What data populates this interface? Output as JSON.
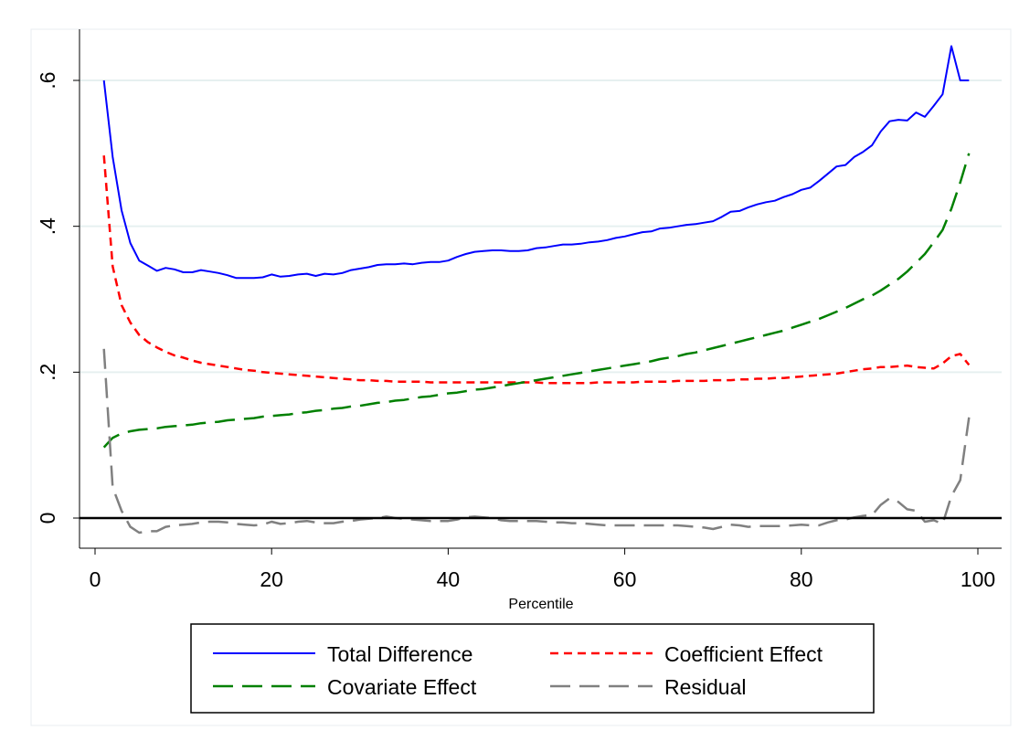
{
  "chart_data": {
    "type": "line",
    "title": "",
    "xlabel": "Percentile",
    "ylabel": "",
    "xlim": [
      0,
      100
    ],
    "ylim": [
      -0.045,
      0.67
    ],
    "x_ticks": [
      0,
      20,
      40,
      60,
      80,
      100
    ],
    "x_tick_labels": [
      "0",
      "20",
      "40",
      "60",
      "80",
      "100"
    ],
    "y_ticks": [
      0,
      0.2,
      0.4,
      0.6
    ],
    "y_tick_labels": [
      "0",
      ".2",
      ".4",
      ".6"
    ],
    "grid": "horizontal",
    "legend_position": "bottom",
    "reference_line_y": 0,
    "colors": {
      "total": "#0000ff",
      "coefficient": "#ff0000",
      "covariate": "#008000",
      "residual": "#808080",
      "grid": "#e6f0f0"
    },
    "series": [
      {
        "key": "total",
        "name": "Total Difference",
        "style": "solid",
        "x": [
          1,
          2,
          3,
          4,
          5,
          6,
          7,
          8,
          9,
          10,
          11,
          12,
          13,
          14,
          15,
          16,
          17,
          18,
          19,
          20,
          21,
          22,
          23,
          24,
          25,
          26,
          27,
          28,
          29,
          30,
          31,
          32,
          33,
          34,
          35,
          36,
          37,
          38,
          39,
          40,
          41,
          42,
          43,
          44,
          45,
          46,
          47,
          48,
          49,
          50,
          51,
          52,
          53,
          54,
          55,
          56,
          57,
          58,
          59,
          60,
          61,
          62,
          63,
          64,
          65,
          66,
          67,
          68,
          69,
          70,
          71,
          72,
          73,
          74,
          75,
          76,
          77,
          78,
          79,
          80,
          81,
          82,
          83,
          84,
          85,
          86,
          87,
          88,
          89,
          90,
          91,
          92,
          93,
          94,
          95,
          96,
          97,
          98,
          99
        ],
        "values": [
          0.6,
          0.495,
          0.422,
          0.377,
          0.353,
          0.346,
          0.339,
          0.343,
          0.341,
          0.337,
          0.337,
          0.34,
          0.338,
          0.336,
          0.333,
          0.329,
          0.329,
          0.329,
          0.33,
          0.334,
          0.331,
          0.332,
          0.334,
          0.335,
          0.332,
          0.335,
          0.334,
          0.336,
          0.34,
          0.342,
          0.344,
          0.347,
          0.348,
          0.348,
          0.349,
          0.348,
          0.35,
          0.351,
          0.351,
          0.353,
          0.358,
          0.362,
          0.365,
          0.366,
          0.367,
          0.367,
          0.366,
          0.366,
          0.367,
          0.37,
          0.371,
          0.373,
          0.375,
          0.375,
          0.376,
          0.378,
          0.379,
          0.381,
          0.384,
          0.386,
          0.389,
          0.392,
          0.393,
          0.397,
          0.398,
          0.4,
          0.402,
          0.403,
          0.405,
          0.407,
          0.413,
          0.42,
          0.421,
          0.426,
          0.43,
          0.433,
          0.435,
          0.44,
          0.444,
          0.45,
          0.453,
          0.462,
          0.472,
          0.482,
          0.484,
          0.495,
          0.502,
          0.511,
          0.53,
          0.544,
          0.546,
          0.545,
          0.556,
          0.55,
          0.565,
          0.581,
          0.647,
          0.6,
          0.6
        ]
      },
      {
        "key": "coefficient",
        "name": "Coefficient Effect",
        "style": "short-dash",
        "x": [
          1,
          2,
          3,
          4,
          5,
          6,
          7,
          8,
          9,
          10,
          11,
          12,
          13,
          14,
          15,
          16,
          17,
          18,
          19,
          20,
          21,
          22,
          23,
          24,
          25,
          26,
          27,
          28,
          29,
          30,
          31,
          32,
          33,
          34,
          35,
          36,
          37,
          38,
          39,
          40,
          41,
          42,
          43,
          44,
          45,
          46,
          47,
          48,
          49,
          50,
          51,
          52,
          53,
          54,
          55,
          56,
          57,
          58,
          59,
          60,
          61,
          62,
          63,
          64,
          65,
          66,
          67,
          68,
          69,
          70,
          71,
          72,
          73,
          74,
          75,
          76,
          77,
          78,
          79,
          80,
          81,
          82,
          83,
          84,
          85,
          86,
          87,
          88,
          89,
          90,
          91,
          92,
          93,
          94,
          95,
          96,
          97,
          98,
          99
        ],
        "values": [
          0.497,
          0.345,
          0.292,
          0.268,
          0.251,
          0.241,
          0.234,
          0.228,
          0.223,
          0.22,
          0.216,
          0.213,
          0.211,
          0.209,
          0.207,
          0.205,
          0.203,
          0.202,
          0.2,
          0.199,
          0.198,
          0.197,
          0.196,
          0.195,
          0.194,
          0.193,
          0.192,
          0.191,
          0.19,
          0.189,
          0.189,
          0.188,
          0.188,
          0.187,
          0.187,
          0.187,
          0.187,
          0.186,
          0.186,
          0.186,
          0.186,
          0.186,
          0.186,
          0.186,
          0.186,
          0.186,
          0.186,
          0.186,
          0.186,
          0.186,
          0.185,
          0.185,
          0.185,
          0.185,
          0.185,
          0.185,
          0.186,
          0.186,
          0.186,
          0.186,
          0.186,
          0.187,
          0.187,
          0.187,
          0.187,
          0.188,
          0.188,
          0.188,
          0.188,
          0.189,
          0.189,
          0.189,
          0.19,
          0.19,
          0.191,
          0.191,
          0.192,
          0.192,
          0.193,
          0.194,
          0.195,
          0.196,
          0.197,
          0.198,
          0.2,
          0.202,
          0.204,
          0.205,
          0.207,
          0.207,
          0.208,
          0.209,
          0.207,
          0.206,
          0.205,
          0.212,
          0.222,
          0.225,
          0.21
        ]
      },
      {
        "key": "covariate",
        "name": "Covariate Effect",
        "style": "long-dash",
        "x": [
          1,
          2,
          3,
          4,
          5,
          6,
          7,
          8,
          9,
          10,
          11,
          12,
          13,
          14,
          15,
          16,
          17,
          18,
          19,
          20,
          21,
          22,
          23,
          24,
          25,
          26,
          27,
          28,
          29,
          30,
          31,
          32,
          33,
          34,
          35,
          36,
          37,
          38,
          39,
          40,
          41,
          42,
          43,
          44,
          45,
          46,
          47,
          48,
          49,
          50,
          51,
          52,
          53,
          54,
          55,
          56,
          57,
          58,
          59,
          60,
          61,
          62,
          63,
          64,
          65,
          66,
          67,
          68,
          69,
          70,
          71,
          72,
          73,
          74,
          75,
          76,
          77,
          78,
          79,
          80,
          81,
          82,
          83,
          84,
          85,
          86,
          87,
          88,
          89,
          90,
          91,
          92,
          93,
          94,
          95,
          96,
          97,
          98,
          99
        ],
        "values": [
          0.097,
          0.11,
          0.116,
          0.119,
          0.121,
          0.122,
          0.123,
          0.125,
          0.126,
          0.127,
          0.128,
          0.13,
          0.131,
          0.132,
          0.134,
          0.135,
          0.136,
          0.137,
          0.139,
          0.14,
          0.141,
          0.142,
          0.144,
          0.145,
          0.147,
          0.148,
          0.15,
          0.151,
          0.153,
          0.154,
          0.156,
          0.158,
          0.159,
          0.161,
          0.162,
          0.164,
          0.166,
          0.167,
          0.169,
          0.171,
          0.172,
          0.174,
          0.176,
          0.177,
          0.179,
          0.181,
          0.183,
          0.185,
          0.187,
          0.189,
          0.191,
          0.193,
          0.195,
          0.197,
          0.199,
          0.201,
          0.203,
          0.205,
          0.207,
          0.209,
          0.211,
          0.213,
          0.215,
          0.218,
          0.22,
          0.222,
          0.225,
          0.227,
          0.23,
          0.233,
          0.236,
          0.239,
          0.242,
          0.245,
          0.248,
          0.251,
          0.254,
          0.257,
          0.261,
          0.265,
          0.269,
          0.273,
          0.278,
          0.283,
          0.288,
          0.294,
          0.3,
          0.305,
          0.312,
          0.32,
          0.328,
          0.338,
          0.35,
          0.362,
          0.378,
          0.395,
          0.424,
          0.46,
          0.5
        ]
      },
      {
        "key": "residual",
        "name": "Residual",
        "style": "long-dash",
        "x": [
          1,
          2,
          3,
          4,
          5,
          6,
          7,
          8,
          9,
          10,
          11,
          12,
          13,
          14,
          15,
          16,
          17,
          18,
          19,
          20,
          21,
          22,
          23,
          24,
          25,
          26,
          27,
          28,
          29,
          30,
          31,
          32,
          33,
          34,
          35,
          36,
          37,
          38,
          39,
          40,
          41,
          42,
          43,
          44,
          45,
          46,
          47,
          48,
          49,
          50,
          51,
          52,
          53,
          54,
          55,
          56,
          57,
          58,
          59,
          60,
          61,
          62,
          63,
          64,
          65,
          66,
          67,
          68,
          69,
          70,
          71,
          72,
          73,
          74,
          75,
          76,
          77,
          78,
          79,
          80,
          81,
          82,
          83,
          84,
          85,
          86,
          87,
          88,
          89,
          90,
          91,
          92,
          93,
          94,
          95,
          96,
          97,
          98,
          99
        ],
        "values": [
          0.232,
          0.042,
          0.01,
          -0.012,
          -0.02,
          -0.018,
          -0.018,
          -0.012,
          -0.01,
          -0.009,
          -0.008,
          -0.006,
          -0.005,
          -0.005,
          -0.006,
          -0.008,
          -0.009,
          -0.01,
          -0.009,
          -0.005,
          -0.008,
          -0.007,
          -0.005,
          -0.004,
          -0.006,
          -0.007,
          -0.007,
          -0.005,
          -0.004,
          -0.002,
          -0.001,
          0.0,
          0.002,
          0.0,
          -0.001,
          -0.002,
          -0.003,
          -0.004,
          -0.004,
          -0.004,
          -0.002,
          0.001,
          0.002,
          0.001,
          0.0,
          -0.003,
          -0.004,
          -0.004,
          -0.004,
          -0.004,
          -0.005,
          -0.006,
          -0.006,
          -0.007,
          -0.007,
          -0.008,
          -0.009,
          -0.01,
          -0.01,
          -0.01,
          -0.01,
          -0.01,
          -0.01,
          -0.01,
          -0.01,
          -0.01,
          -0.011,
          -0.012,
          -0.013,
          -0.015,
          -0.012,
          -0.009,
          -0.01,
          -0.012,
          -0.011,
          -0.011,
          -0.011,
          -0.011,
          -0.01,
          -0.009,
          -0.01,
          -0.01,
          -0.006,
          -0.003,
          -0.002,
          0.001,
          0.003,
          0.004,
          0.018,
          0.027,
          0.022,
          0.012,
          0.01,
          -0.005,
          -0.003,
          -0.008,
          0.03,
          0.052,
          0.138
        ]
      }
    ]
  }
}
